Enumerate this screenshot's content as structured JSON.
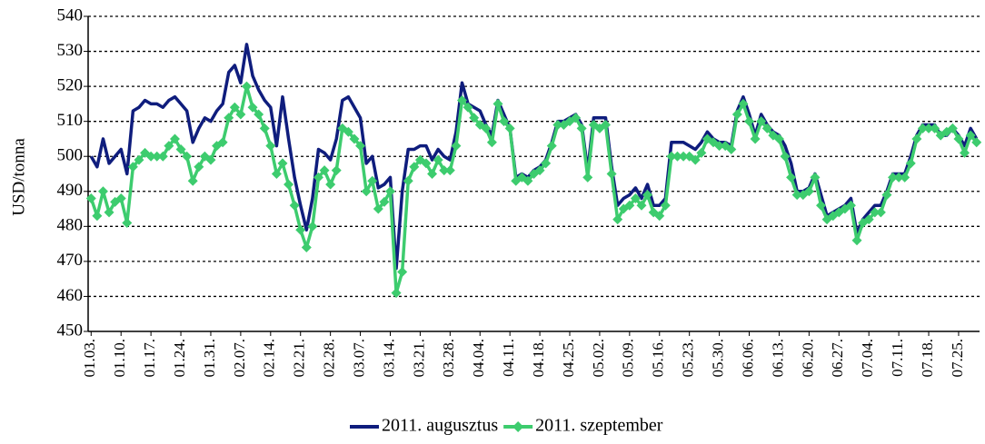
{
  "chart_data": {
    "type": "line",
    "ylabel": "USD/tonna",
    "ylim": [
      450,
      540
    ],
    "yticks": [
      450,
      460,
      470,
      480,
      490,
      500,
      510,
      520,
      530,
      540
    ],
    "grid": true,
    "legend": "bottom",
    "categories": [
      "01.03.",
      null,
      null,
      null,
      null,
      "01.10.",
      null,
      null,
      null,
      null,
      "01.17.",
      null,
      null,
      null,
      null,
      "01.24.",
      null,
      null,
      null,
      null,
      "01.31.",
      null,
      null,
      null,
      null,
      "02.07.",
      null,
      null,
      null,
      null,
      "02.14.",
      null,
      null,
      null,
      null,
      "02.21.",
      null,
      null,
      null,
      null,
      "02.28.",
      null,
      null,
      null,
      null,
      "03.07.",
      null,
      null,
      null,
      null,
      "03.14.",
      null,
      null,
      null,
      null,
      "03.21.",
      null,
      null,
      null,
      null,
      "03.28.",
      null,
      null,
      null,
      null,
      "04.04.",
      null,
      null,
      null,
      null,
      "04.11.",
      null,
      null,
      null,
      null,
      "04.18.",
      null,
      null,
      null,
      null,
      "04.25.",
      null,
      null,
      null,
      null,
      "05.02.",
      null,
      null,
      null,
      null,
      "05.09.",
      null,
      null,
      null,
      null,
      "05.16.",
      null,
      null,
      null,
      null,
      "05.23.",
      null,
      null,
      null,
      null,
      "05.30.",
      null,
      null,
      null,
      null,
      "06.06.",
      null,
      null,
      null,
      null,
      "06.13.",
      null,
      null,
      null,
      null,
      "06.20.",
      null,
      null,
      null,
      null,
      "06.27.",
      null,
      null,
      null,
      null,
      "07.04.",
      null,
      null,
      null,
      null,
      "07.11.",
      null,
      null,
      null,
      null,
      "07.18.",
      null,
      null,
      null,
      null,
      "07.25.",
      null,
      null,
      null
    ],
    "series": [
      {
        "name": "2011. augusztus",
        "color": "#0f1d7d",
        "marker": "none",
        "values": [
          500,
          497,
          505,
          498,
          500,
          502,
          495,
          513,
          514,
          516,
          515,
          515,
          514,
          516,
          517,
          515,
          513,
          504,
          508,
          511,
          510,
          513,
          515,
          524,
          526,
          521,
          532,
          523,
          519,
          516,
          514,
          503,
          517,
          505,
          494,
          486,
          479,
          488,
          502,
          501,
          499,
          505,
          516,
          517,
          514,
          511,
          498,
          500,
          491,
          492,
          494,
          468,
          490,
          502,
          502,
          503,
          503,
          499,
          502,
          500,
          499,
          507,
          521,
          515,
          514,
          513,
          509,
          506,
          516,
          512,
          508,
          494,
          495,
          494,
          496,
          497,
          499,
          504,
          510,
          510,
          511,
          512,
          509,
          496,
          511,
          511,
          511,
          497,
          486,
          488,
          489,
          491,
          488,
          492,
          486,
          486,
          488,
          504,
          504,
          504,
          503,
          502,
          504,
          507,
          505,
          504,
          504,
          503,
          513,
          517,
          512,
          506,
          512,
          509,
          507,
          506,
          503,
          498,
          490,
          490,
          491,
          495,
          489,
          483,
          484,
          485,
          486,
          488,
          478,
          482,
          484,
          486,
          486,
          490,
          495,
          495,
          495,
          500,
          506,
          509,
          509,
          509,
          506,
          506,
          508,
          506,
          503,
          508,
          505
        ]
      },
      {
        "name": "2011. szeptember",
        "color": "#3dcc6e",
        "marker": "diamond",
        "values": [
          488,
          483,
          490,
          484,
          487,
          488,
          481,
          497,
          499,
          501,
          500,
          500,
          500,
          503,
          505,
          502,
          500,
          493,
          497,
          500,
          499,
          503,
          504,
          511,
          514,
          512,
          520,
          514,
          512,
          508,
          503,
          495,
          498,
          492,
          486,
          479,
          474,
          480,
          494,
          496,
          492,
          496,
          508,
          507,
          505,
          503,
          490,
          493,
          485,
          487,
          490,
          461,
          467,
          493,
          497,
          499,
          498,
          495,
          499,
          496,
          496,
          503,
          516,
          514,
          511,
          509,
          508,
          504,
          515,
          510,
          508,
          493,
          494,
          493,
          495,
          496,
          498,
          503,
          509,
          509,
          510,
          511,
          508,
          494,
          509,
          508,
          509,
          495,
          482,
          485,
          486,
          488,
          486,
          489,
          484,
          483,
          486,
          500,
          500,
          500,
          500,
          499,
          501,
          505,
          504,
          503,
          503,
          502,
          512,
          515,
          510,
          505,
          510,
          508,
          506,
          505,
          500,
          494,
          489,
          489,
          490,
          494,
          486,
          482,
          483,
          484,
          485,
          486,
          476,
          481,
          482,
          484,
          484,
          489,
          494,
          494,
          494,
          498,
          505,
          508,
          508,
          508,
          506,
          507,
          508,
          505,
          501,
          506,
          504
        ]
      }
    ]
  }
}
